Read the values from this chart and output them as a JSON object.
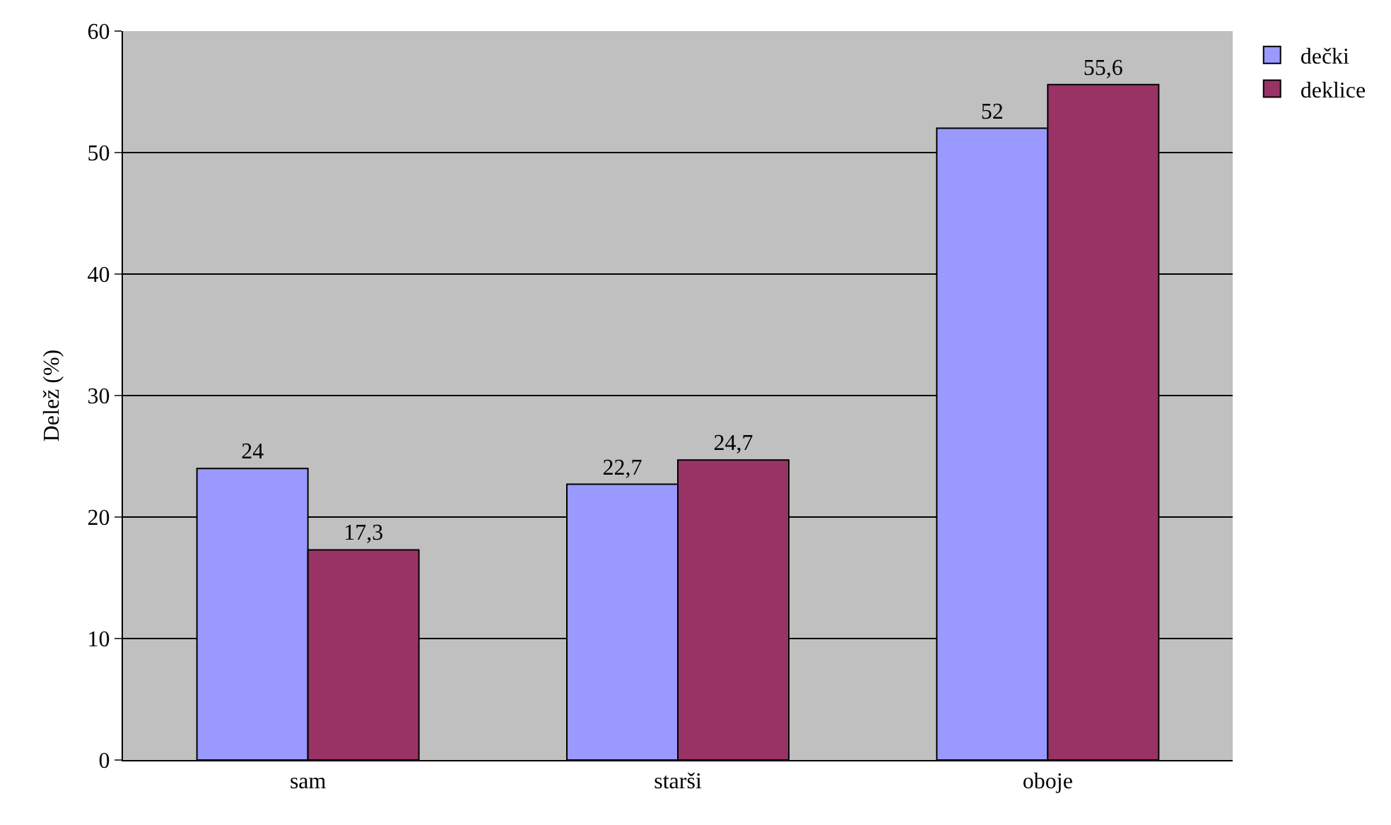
{
  "chart_data": {
    "type": "bar",
    "ylabel": "Delež (%)",
    "categories": [
      "sam",
      "starši",
      "oboje"
    ],
    "series": [
      {
        "name": "dečki",
        "color": "#9999ff",
        "values": [
          24,
          22.7,
          52
        ],
        "value_labels": [
          "24",
          "22,7",
          "52"
        ]
      },
      {
        "name": "deklice",
        "color": "#993366",
        "values": [
          17.3,
          24.7,
          55.6
        ],
        "value_labels": [
          "17,3",
          "24,7",
          "55,6"
        ]
      }
    ],
    "ylim": [
      0,
      60
    ],
    "yticks": [
      0,
      10,
      20,
      30,
      40,
      50,
      60
    ],
    "grid": "y",
    "legend": "top right"
  }
}
